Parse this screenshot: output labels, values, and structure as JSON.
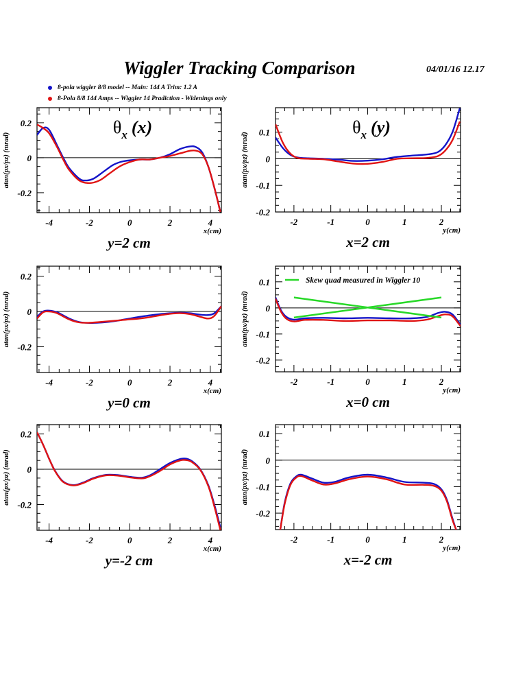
{
  "header": {
    "title": "Wiggler Tracking Comparison",
    "datestamp": "04/01/16   12.17"
  },
  "legend": [
    {
      "label": "8-pola wiggler 8/8 model --  Main: 144 A    Trim: 1.2 A",
      "color": "#1414c8"
    },
    {
      "label": "8-Pola 8/8 144 Amps -- Wiggler 14 Pradiction - Widenings only",
      "color": "#e01414"
    }
  ],
  "colors": {
    "blue": "#1414c8",
    "red": "#e01414",
    "green": "#28d828",
    "frame": "#000000"
  },
  "chart_data": [
    {
      "type": "line",
      "panel_title": "θx (x)",
      "xlabel": "x(cm)",
      "ylabel": "atan(px/pz) (mrad)",
      "caption": "y=2 cm",
      "xlim": [
        -4.6,
        4.55
      ],
      "ylim": [
        -0.314,
        0.286
      ],
      "xticks": [
        -4,
        -2,
        0,
        2,
        4
      ],
      "xtick_labels": [
        "-4",
        "-2",
        "0",
        "2",
        "4"
      ],
      "yticks": [
        -0.2,
        0,
        0.2
      ],
      "ytick_labels": [
        "-0.2",
        "0",
        "0.2"
      ],
      "series": [
        {
          "name": "8-pole wiggler model",
          "color": "blue",
          "x": [
            -4.6,
            -4.3,
            -4,
            -3.6,
            -3.3,
            -3,
            -2.5,
            -2.2,
            -1.8,
            -1.3,
            -0.8,
            -0.3,
            0.5,
            1,
            1.5,
            2,
            2.5,
            3,
            3.3,
            3.6,
            3.9,
            4.2,
            4.5
          ],
          "y": [
            0.13,
            0.17,
            0.16,
            0.07,
            0.0,
            -0.06,
            -0.12,
            -0.13,
            -0.12,
            -0.08,
            -0.04,
            -0.02,
            -0.01,
            -0.01,
            0,
            0.02,
            0.05,
            0.065,
            0.06,
            0.03,
            -0.05,
            -0.17,
            -0.31
          ]
        },
        {
          "name": "Wiggler 14 prediction",
          "color": "red",
          "x": [
            -4.6,
            -4.3,
            -4,
            -3.6,
            -3.3,
            -3,
            -2.5,
            -2,
            -1.5,
            -1,
            -0.5,
            0,
            0.5,
            1,
            1.5,
            2,
            2.5,
            3,
            3.3,
            3.6,
            3.9,
            4.2,
            4.5
          ],
          "y": [
            0.19,
            0.17,
            0.14,
            0.06,
            -0.01,
            -0.07,
            -0.13,
            -0.145,
            -0.13,
            -0.09,
            -0.05,
            -0.025,
            -0.01,
            -0.01,
            0,
            0.01,
            0.025,
            0.04,
            0.04,
            0.02,
            -0.05,
            -0.17,
            -0.31
          ]
        }
      ]
    },
    {
      "type": "line",
      "panel_title": "θx (y)",
      "xlabel": "y(cm)",
      "ylabel": "atan(px/pz) (mrad)",
      "caption": "x=2 cm",
      "xlim": [
        -2.5,
        2.52
      ],
      "ylim": [
        -0.2,
        0.192
      ],
      "xticks": [
        -2,
        -1,
        0,
        1,
        2
      ],
      "xtick_labels": [
        "-2",
        "-1",
        "0",
        "1",
        "2"
      ],
      "yticks": [
        -0.2,
        -0.1,
        0,
        0.1
      ],
      "ytick_labels": [
        "-0.2",
        "-0.1",
        "0",
        "0.1"
      ],
      "series": [
        {
          "name": "8-pole wiggler model",
          "color": "blue",
          "x": [
            -2.5,
            -2.3,
            -2.1,
            -1.9,
            -1.6,
            -1.2,
            -0.8,
            -0.4,
            0,
            0.4,
            0.8,
            1.2,
            1.6,
            1.9,
            2.1,
            2.3,
            2.5
          ],
          "y": [
            0.08,
            0.04,
            0.015,
            0.005,
            0.002,
            0,
            -0.003,
            -0.008,
            -0.007,
            -0.002,
            0.007,
            0.012,
            0.016,
            0.025,
            0.05,
            0.1,
            0.19
          ]
        },
        {
          "name": "Wiggler 14 prediction",
          "color": "red",
          "x": [
            -2.5,
            -2.3,
            -2.1,
            -1.9,
            -1.6,
            -1.2,
            -0.8,
            -0.4,
            0,
            0.4,
            0.8,
            1.2,
            1.6,
            1.9,
            2.1,
            2.3,
            2.5
          ],
          "y": [
            0.13,
            0.06,
            0.02,
            0.003,
            0,
            -0.002,
            -0.01,
            -0.018,
            -0.019,
            -0.012,
            0,
            0.002,
            0.003,
            0.01,
            0.03,
            0.07,
            0.14
          ]
        }
      ]
    },
    {
      "type": "line",
      "panel_title": "",
      "xlabel": "x(cm)",
      "ylabel": "atan(px/pz) (mrad)",
      "caption": "y=0 cm",
      "xlim": [
        -4.6,
        4.55
      ],
      "ylim": [
        -0.346,
        0.257
      ],
      "xticks": [
        -4,
        -2,
        0,
        2,
        4
      ],
      "xtick_labels": [
        "-4",
        "-2",
        "0",
        "2",
        "4"
      ],
      "yticks": [
        -0.2,
        0,
        0.2
      ],
      "ytick_labels": [
        "-0.2",
        "0",
        "0.2"
      ],
      "series": [
        {
          "name": "8-pole wiggler model",
          "color": "blue",
          "x": [
            -4.6,
            -4.3,
            -4,
            -3.6,
            -3,
            -2.5,
            -2,
            -1.5,
            -1,
            -0.5,
            0,
            0.5,
            1,
            1.5,
            2,
            2.5,
            3,
            3.5,
            3.9,
            4.2,
            4.55
          ],
          "y": [
            -0.03,
            0.0,
            0.005,
            -0.005,
            -0.04,
            -0.06,
            -0.065,
            -0.063,
            -0.058,
            -0.05,
            -0.04,
            -0.03,
            -0.022,
            -0.015,
            -0.01,
            -0.007,
            -0.01,
            -0.018,
            -0.02,
            -0.01,
            0.03
          ]
        },
        {
          "name": "Wiggler 14 prediction",
          "color": "red",
          "x": [
            -4.6,
            -4.3,
            -4,
            -3.6,
            -3,
            -2.5,
            -2,
            -1.5,
            -1,
            -0.5,
            0,
            0.5,
            1,
            1.5,
            2,
            2.5,
            3,
            3.5,
            3.9,
            4.2,
            4.55
          ],
          "y": [
            -0.04,
            -0.005,
            0.0,
            -0.01,
            -0.045,
            -0.062,
            -0.064,
            -0.06,
            -0.055,
            -0.05,
            -0.045,
            -0.04,
            -0.032,
            -0.022,
            -0.013,
            -0.01,
            -0.015,
            -0.03,
            -0.04,
            -0.025,
            0.03
          ]
        }
      ]
    },
    {
      "type": "line",
      "panel_title": "",
      "xlabel": "y(cm)",
      "ylabel": "atan(px/pz) (mrad)",
      "caption": "x=0 cm",
      "xlim": [
        -2.5,
        2.52
      ],
      "ylim": [
        -0.245,
        0.16
      ],
      "xticks": [
        -2,
        -1,
        0,
        1,
        2
      ],
      "xtick_labels": [
        "-2",
        "-1",
        "0",
        "1",
        "2"
      ],
      "yticks": [
        -0.2,
        -0.1,
        0,
        0.1
      ],
      "ytick_labels": [
        "-0.2",
        "-0.1",
        "0",
        "0.1"
      ],
      "annotation_legend": {
        "label": "Skew quad measured in Wiggler 10",
        "color": "green"
      },
      "series": [
        {
          "name": "8-pole wiggler model",
          "color": "blue",
          "x": [
            -2.5,
            -2.35,
            -2.2,
            -2.0,
            -1.7,
            -1.2,
            -0.6,
            0,
            0.6,
            1.2,
            1.6,
            1.9,
            2.1,
            2.3,
            2.52
          ],
          "y": [
            0.04,
            -0.01,
            -0.035,
            -0.045,
            -0.04,
            -0.038,
            -0.04,
            -0.038,
            -0.04,
            -0.04,
            -0.035,
            -0.02,
            -0.015,
            -0.025,
            -0.065
          ]
        },
        {
          "name": "Wiggler 14 prediction",
          "color": "red",
          "x": [
            -2.5,
            -2.35,
            -2.2,
            -2.0,
            -1.7,
            -1.2,
            -0.6,
            0,
            0.6,
            1.2,
            1.6,
            1.9,
            2.1,
            2.3,
            2.52
          ],
          "y": [
            0.035,
            -0.015,
            -0.042,
            -0.052,
            -0.046,
            -0.046,
            -0.05,
            -0.048,
            -0.048,
            -0.05,
            -0.045,
            -0.032,
            -0.025,
            -0.032,
            -0.07
          ]
        },
        {
          "name": "Skew quad measured in Wiggler 10 (a)",
          "color": "green",
          "x": [
            -2,
            2
          ],
          "y": [
            0.04,
            -0.037
          ]
        },
        {
          "name": "Skew quad measured in Wiggler 10 (b)",
          "color": "green",
          "x": [
            -2,
            2
          ],
          "y": [
            -0.037,
            0.04
          ]
        }
      ]
    },
    {
      "type": "line",
      "panel_title": "",
      "xlabel": "x(cm)",
      "ylabel": "atan(px/pz) (mrad)",
      "caption": "y=-2 cm",
      "xlim": [
        -4.6,
        4.55
      ],
      "ylim": [
        -0.346,
        0.253
      ],
      "xticks": [
        -4,
        -2,
        0,
        2,
        4
      ],
      "xtick_labels": [
        "-4",
        "-2",
        "0",
        "2",
        "4"
      ],
      "yticks": [
        -0.2,
        0,
        0.2
      ],
      "ytick_labels": [
        "-0.2",
        "0",
        "0.2"
      ],
      "series": [
        {
          "name": "8-pole wiggler model",
          "color": "blue",
          "x": [
            -4.6,
            -4.3,
            -4,
            -3.7,
            -3.3,
            -2.8,
            -2.3,
            -1.8,
            -1.2,
            -0.6,
            0,
            0.6,
            1,
            1.5,
            2,
            2.5,
            2.8,
            3.1,
            3.5,
            3.9,
            4.2,
            4.5
          ],
          "y": [
            0.21,
            0.14,
            0.06,
            -0.01,
            -0.07,
            -0.09,
            -0.075,
            -0.05,
            -0.032,
            -0.033,
            -0.043,
            -0.048,
            -0.035,
            0.0,
            0.035,
            0.058,
            0.06,
            0.045,
            0.0,
            -0.09,
            -0.2,
            -0.33
          ]
        },
        {
          "name": "Wiggler 14 prediction",
          "color": "red",
          "x": [
            -4.6,
            -4.3,
            -4,
            -3.7,
            -3.3,
            -2.8,
            -2.3,
            -1.8,
            -1.2,
            -0.6,
            0,
            0.6,
            1,
            1.5,
            2,
            2.5,
            2.8,
            3.1,
            3.5,
            3.9,
            4.2,
            4.5
          ],
          "y": [
            0.21,
            0.14,
            0.06,
            -0.012,
            -0.072,
            -0.092,
            -0.078,
            -0.053,
            -0.035,
            -0.036,
            -0.046,
            -0.052,
            -0.04,
            -0.01,
            0.027,
            0.05,
            0.052,
            0.04,
            -0.003,
            -0.095,
            -0.21,
            -0.345
          ]
        }
      ]
    },
    {
      "type": "line",
      "panel_title": "",
      "xlabel": "y(cm)",
      "ylabel": "atan(px/pz) (mrad)",
      "caption": "x=-2 cm",
      "xlim": [
        -2.5,
        2.52
      ],
      "ylim": [
        -0.262,
        0.134
      ],
      "xticks": [
        -2,
        -1,
        0,
        1,
        2
      ],
      "xtick_labels": [
        "-2",
        "-1",
        "0",
        "1",
        "2"
      ],
      "yticks": [
        -0.2,
        -0.1,
        0,
        0.1
      ],
      "ytick_labels": [
        "-0.2",
        "-0.1",
        "0",
        "0.1"
      ],
      "series": [
        {
          "name": "8-pole wiggler model",
          "color": "blue",
          "x": [
            -2.37,
            -2.25,
            -2.1,
            -1.95,
            -1.8,
            -1.5,
            -1.2,
            -0.9,
            -0.5,
            0,
            0.5,
            1,
            1.5,
            1.8,
            2.0,
            2.15,
            2.3,
            2.4
          ],
          "y": [
            -0.262,
            -0.16,
            -0.09,
            -0.063,
            -0.055,
            -0.07,
            -0.085,
            -0.082,
            -0.065,
            -0.055,
            -0.065,
            -0.082,
            -0.085,
            -0.09,
            -0.11,
            -0.15,
            -0.22,
            -0.262
          ]
        },
        {
          "name": "Wiggler 14 prediction",
          "color": "red",
          "x": [
            -2.37,
            -2.25,
            -2.1,
            -1.95,
            -1.8,
            -1.5,
            -1.2,
            -0.9,
            -0.5,
            0,
            0.5,
            1,
            1.5,
            1.8,
            2.0,
            2.15,
            2.3,
            2.4
          ],
          "y": [
            -0.262,
            -0.165,
            -0.095,
            -0.067,
            -0.06,
            -0.077,
            -0.092,
            -0.088,
            -0.072,
            -0.062,
            -0.072,
            -0.092,
            -0.093,
            -0.097,
            -0.115,
            -0.155,
            -0.225,
            -0.262
          ]
        }
      ]
    }
  ]
}
